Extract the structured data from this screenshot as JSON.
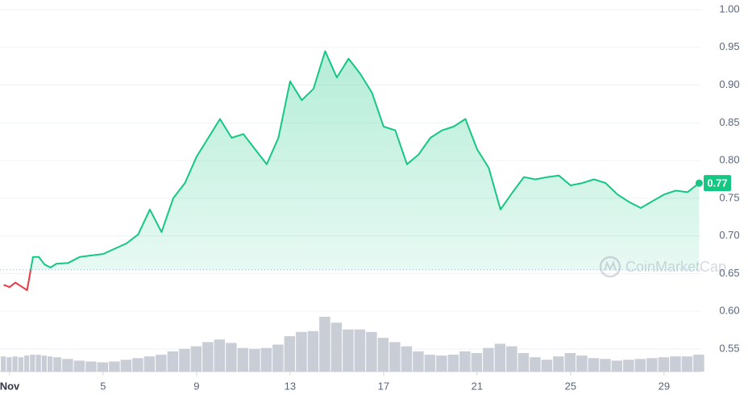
{
  "chart_data": {
    "type": "line",
    "x": [
      0.75,
      1,
      1.25,
      1.5,
      1.75,
      2,
      2.25,
      2.5,
      2.75,
      3,
      3.5,
      4,
      4.5,
      5,
      5.5,
      6,
      6.5,
      7,
      7.5,
      8,
      8.5,
      9,
      9.5,
      10,
      10.5,
      11,
      11.5,
      12,
      12.5,
      13,
      13.5,
      14,
      14.5,
      15,
      15.5,
      16,
      16.5,
      17,
      17.5,
      18,
      18.5,
      19,
      19.5,
      20,
      20.5,
      21,
      21.5,
      22,
      22.5,
      23,
      23.5,
      24,
      24.5,
      25,
      25.5,
      26,
      26.5,
      27,
      27.5,
      28,
      28.5,
      29,
      29.5,
      30,
      30.5
    ],
    "series": [
      {
        "color": "#16c784",
        "negative_color": "#ea3943",
        "values": [
          0.635,
          0.632,
          0.638,
          0.633,
          0.628,
          0.672,
          0.672,
          0.662,
          0.658,
          0.663,
          0.664,
          0.672,
          0.674,
          0.676,
          0.683,
          0.69,
          0.702,
          0.735,
          0.705,
          0.75,
          0.77,
          0.805,
          0.83,
          0.855,
          0.83,
          0.835,
          0.815,
          0.795,
          0.83,
          0.905,
          0.88,
          0.895,
          0.945,
          0.91,
          0.935,
          0.915,
          0.89,
          0.845,
          0.84,
          0.795,
          0.808,
          0.83,
          0.84,
          0.845,
          0.855,
          0.815,
          0.79,
          0.735,
          0.757,
          0.778,
          0.775,
          0.778,
          0.78,
          0.767,
          0.77,
          0.775,
          0.77,
          0.755,
          0.745,
          0.737,
          0.746,
          0.755,
          0.76,
          0.758,
          0.77
        ]
      }
    ],
    "volume": [
      18,
      17,
      18,
      17,
      19,
      20,
      20,
      19,
      18,
      17,
      15,
      13,
      12,
      11,
      12,
      14,
      16,
      18,
      20,
      24,
      27,
      30,
      35,
      38,
      34,
      28,
      27,
      28,
      32,
      42,
      47,
      48,
      65,
      58,
      50,
      50,
      47,
      40,
      35,
      30,
      24,
      20,
      19,
      20,
      24,
      22,
      28,
      33,
      30,
      22,
      17,
      14,
      18,
      22,
      19,
      16,
      15,
      13,
      14,
      15,
      16,
      17,
      18,
      18,
      20
    ],
    "volume_color": "#c9cdd6",
    "baseline": 0.655,
    "current_price": 0.77,
    "watermark": "CoinMarketCap",
    "xlim": [
      0.59,
      30.59
    ],
    "xticks": [
      {
        "value": 1,
        "label": "Nov"
      },
      5,
      9,
      13,
      17,
      21,
      25,
      29
    ],
    "ylim": [
      0.52,
      1.0
    ],
    "yticks": [
      0.55,
      {
        "value": 0.6,
        "label": "0.60"
      },
      0.65,
      {
        "value": 0.7,
        "label": "0.70"
      },
      0.75,
      {
        "value": 0.8,
        "label": "0.80"
      },
      0.85,
      {
        "value": 0.9,
        "label": "0.90"
      },
      0.95,
      {
        "value": 1,
        "label": "1.00"
      }
    ],
    "grid": true
  }
}
